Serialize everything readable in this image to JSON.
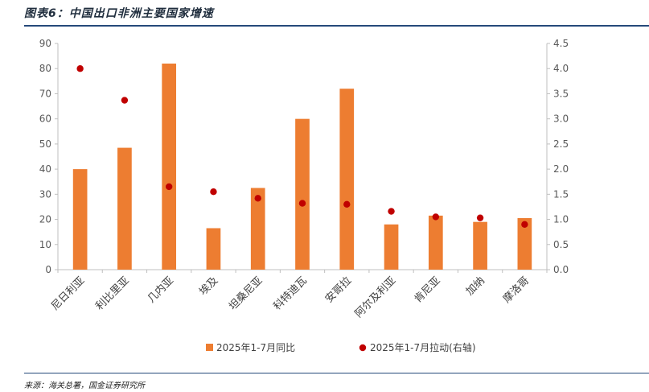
{
  "header": {
    "title": "图表6：中国出口非洲主要国家增速"
  },
  "footer": {
    "source": "来源：海关总署，国金证券研究所"
  },
  "colors": {
    "bar": "#ed7d31",
    "dot": "#c00000",
    "axis": "#bfbfbf",
    "rule": "#25497a"
  },
  "chart_data": {
    "type": "bar",
    "categories": [
      "尼日利亚",
      "利比里亚",
      "几内亚",
      "埃及",
      "坦桑尼亚",
      "科特迪瓦",
      "安哥拉",
      "阿尔及利亚",
      "肯尼亚",
      "加纳",
      "摩洛哥"
    ],
    "series": [
      {
        "name": "2025年1-7月同比",
        "type": "bar",
        "axis": "left",
        "values": [
          40,
          48.5,
          82,
          16.5,
          32.5,
          60,
          72,
          18,
          21.5,
          19,
          20.5
        ]
      },
      {
        "name": "2025年1-7月拉动(右轴)",
        "type": "scatter",
        "axis": "right",
        "values": [
          4.0,
          3.37,
          1.65,
          1.55,
          1.42,
          1.32,
          1.3,
          1.16,
          1.05,
          1.03,
          0.9
        ]
      }
    ],
    "ylim_left": [
      0,
      90
    ],
    "yticks_left": [
      "0",
      "10",
      "20",
      "30",
      "40",
      "50",
      "60",
      "70",
      "80",
      "90"
    ],
    "ylim_right": [
      0,
      4.5
    ],
    "yticks_right": [
      "0.0",
      "0.5",
      "1.0",
      "1.5",
      "2.0",
      "2.5",
      "3.0",
      "3.5",
      "4.0",
      "4.5"
    ],
    "grid": false,
    "legend": "bottom"
  }
}
